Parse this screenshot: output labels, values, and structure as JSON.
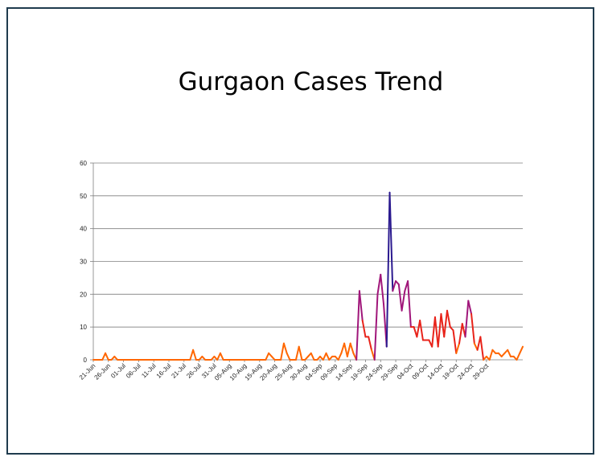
{
  "chart_data": {
    "type": "line",
    "title": "Gurgaon Cases Trend",
    "xlabel": "",
    "ylabel": "",
    "ylim": [
      0,
      60
    ],
    "yticks": [
      0,
      10,
      20,
      30,
      40,
      50,
      60
    ],
    "grid": true,
    "legend": "none",
    "x_start": "21-Jun",
    "x_tick_labels": [
      "21-Jun",
      "26-Jun",
      "01-Jul",
      "06-Jul",
      "11-Jul",
      "16-Jul",
      "21-Jul",
      "26-Jul",
      "31-Jul",
      "05-Aug",
      "10-Aug",
      "15-Aug",
      "20-Aug",
      "25-Aug",
      "30-Aug",
      "04-Sep",
      "09-Sep",
      "14-Sep",
      "19-Sep",
      "24-Sep",
      "29-Sep",
      "04-Oct",
      "09-Oct",
      "14-Oct",
      "19-Oct",
      "24-Oct",
      "29-Oct"
    ],
    "values": [
      0,
      0,
      0,
      0,
      2,
      0,
      0,
      1,
      0,
      0,
      0,
      0,
      0,
      0,
      0,
      0,
      0,
      0,
      0,
      0,
      0,
      0,
      0,
      0,
      0,
      0,
      0,
      0,
      0,
      0,
      0,
      0,
      0,
      3,
      0,
      0,
      1,
      0,
      0,
      0,
      1,
      0,
      2,
      0,
      0,
      0,
      0,
      0,
      0,
      0,
      0,
      0,
      0,
      0,
      0,
      0,
      0,
      0,
      2,
      1,
      0,
      0,
      0,
      5,
      2,
      0,
      0,
      0,
      4,
      0,
      0,
      1,
      2,
      0,
      0,
      1,
      0,
      2,
      0,
      1,
      1,
      0,
      2,
      5,
      1,
      5,
      2,
      0,
      21,
      12,
      7,
      7,
      3,
      0,
      20,
      26,
      17,
      4,
      51,
      21,
      24,
      23,
      15,
      21,
      24,
      10,
      10,
      7,
      12,
      6,
      6,
      6,
      4,
      13,
      4,
      14,
      7,
      15,
      10,
      9,
      2,
      5,
      11,
      7,
      18,
      14,
      5,
      3,
      7,
      0,
      1,
      0,
      3,
      2,
      2,
      1,
      2,
      3,
      1,
      1,
      0,
      2,
      4
    ],
    "colors": {
      "low": "#ff6600",
      "mid": "#e8231a",
      "high": "#a0167a",
      "peak": "#2b1a8f"
    }
  }
}
